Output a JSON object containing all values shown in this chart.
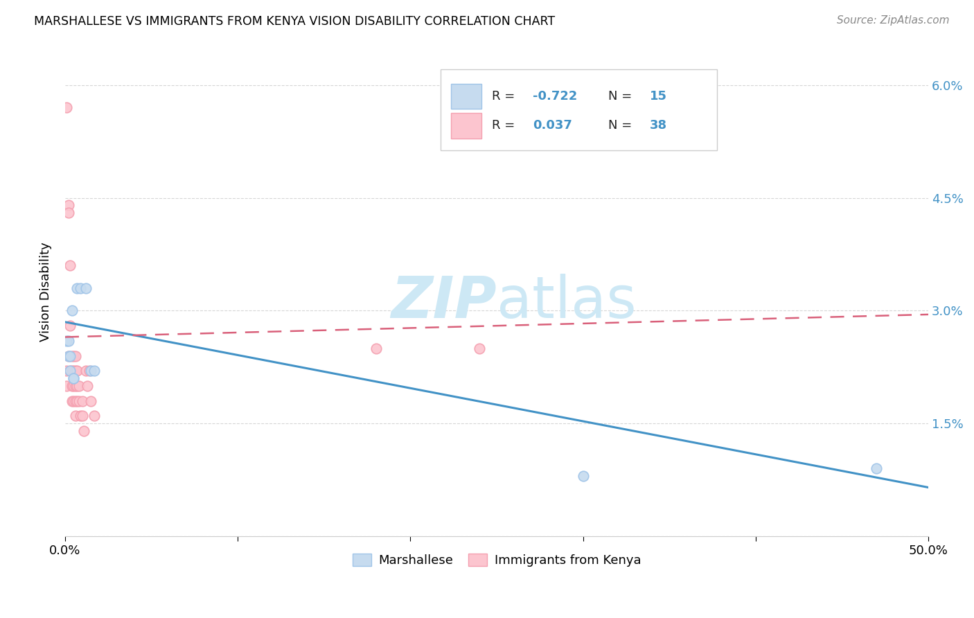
{
  "title": "MARSHALLESE VS IMMIGRANTS FROM KENYA VISION DISABILITY CORRELATION CHART",
  "source": "Source: ZipAtlas.com",
  "ylabel": "Vision Disability",
  "xlim": [
    0.0,
    0.5
  ],
  "ylim": [
    0.0,
    0.065
  ],
  "yticks": [
    0.0,
    0.015,
    0.03,
    0.045,
    0.06
  ],
  "ytick_labels": [
    "",
    "1.5%",
    "3.0%",
    "4.5%",
    "6.0%"
  ],
  "xticks": [
    0.0,
    0.1,
    0.2,
    0.3,
    0.4,
    0.5
  ],
  "xtick_labels": [
    "0.0%",
    "",
    "",
    "",
    "",
    "50.0%"
  ],
  "blue_color": "#a0c4e8",
  "pink_color": "#f4a0b0",
  "blue_fill": "#c6dbef",
  "pink_fill": "#fcc5cf",
  "line_blue": "#4292c6",
  "line_pink": "#d9607a",
  "watermark_color": "#cde8f5",
  "grid_color": "#cccccc",
  "bg_color": "#ffffff",
  "legend_text_color": "#4292c6",
  "marshallese_x": [
    0.001,
    0.002,
    0.002,
    0.003,
    0.003,
    0.004,
    0.005,
    0.005,
    0.007,
    0.009,
    0.012,
    0.015,
    0.017,
    0.3,
    0.47
  ],
  "marshallese_y": [
    0.026,
    0.026,
    0.024,
    0.024,
    0.022,
    0.03,
    0.021,
    0.021,
    0.033,
    0.033,
    0.033,
    0.022,
    0.022,
    0.008,
    0.009
  ],
  "kenya_x": [
    0.001,
    0.001,
    0.001,
    0.002,
    0.002,
    0.002,
    0.003,
    0.003,
    0.003,
    0.004,
    0.004,
    0.004,
    0.004,
    0.005,
    0.005,
    0.005,
    0.005,
    0.006,
    0.006,
    0.006,
    0.006,
    0.006,
    0.007,
    0.007,
    0.007,
    0.008,
    0.008,
    0.009,
    0.01,
    0.01,
    0.011,
    0.012,
    0.013,
    0.014,
    0.015,
    0.017,
    0.18,
    0.24
  ],
  "kenya_y": [
    0.057,
    0.022,
    0.02,
    0.044,
    0.043,
    0.024,
    0.036,
    0.028,
    0.022,
    0.024,
    0.022,
    0.02,
    0.018,
    0.024,
    0.022,
    0.02,
    0.018,
    0.024,
    0.022,
    0.02,
    0.018,
    0.016,
    0.022,
    0.02,
    0.018,
    0.02,
    0.018,
    0.016,
    0.018,
    0.016,
    0.014,
    0.022,
    0.02,
    0.022,
    0.018,
    0.016,
    0.025,
    0.025
  ],
  "trend_blue_x0": 0.0,
  "trend_blue_y0": 0.0285,
  "trend_blue_x1": 0.5,
  "trend_blue_y1": 0.0065,
  "trend_pink_x0": 0.0,
  "trend_pink_y0": 0.0265,
  "trend_pink_x1": 0.5,
  "trend_pink_y1": 0.0295
}
